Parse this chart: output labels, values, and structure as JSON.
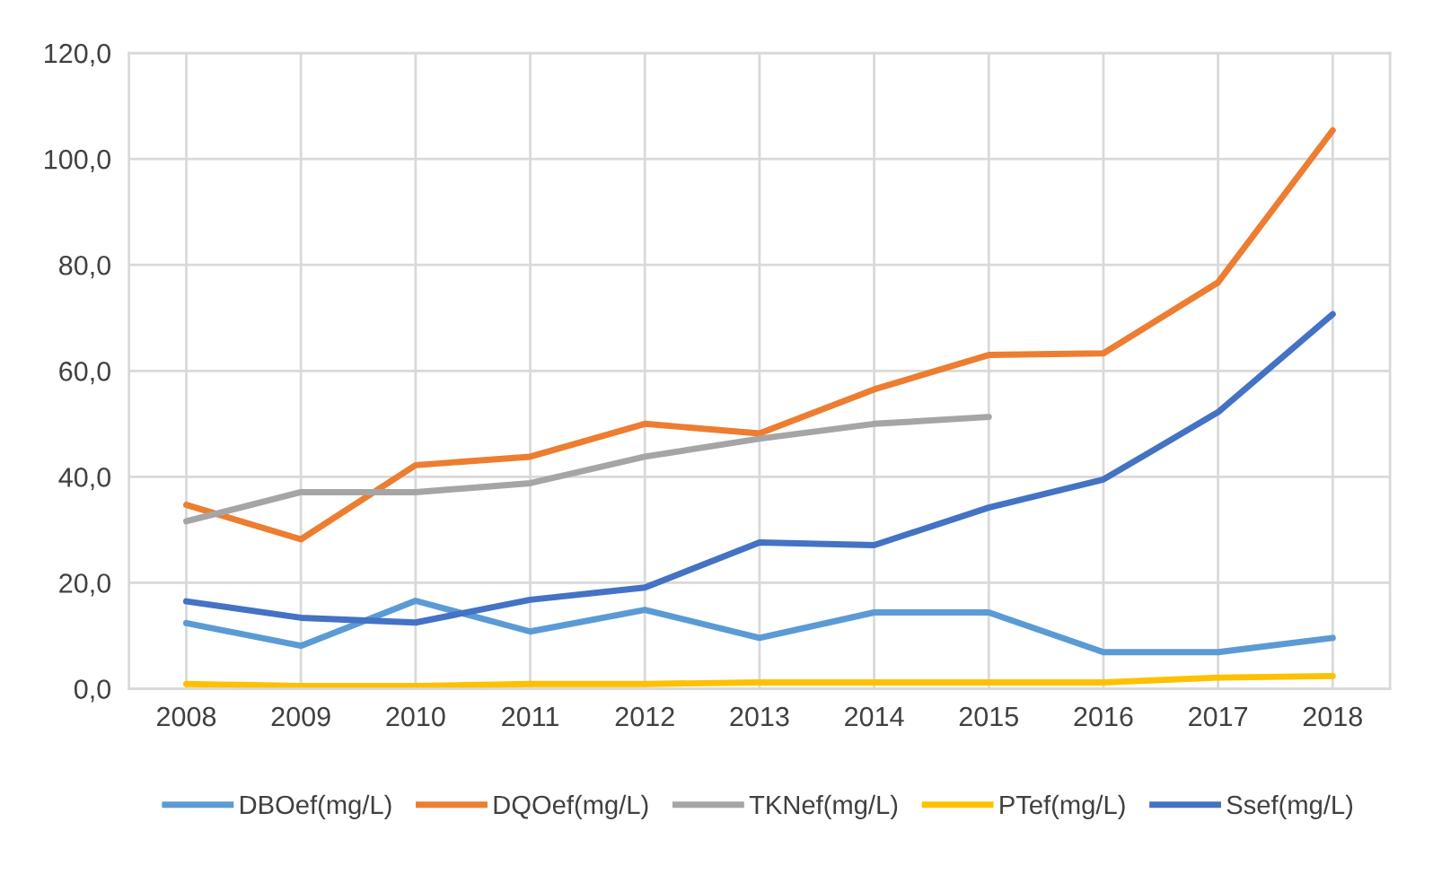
{
  "chart_data": {
    "type": "line",
    "categories": [
      "2008",
      "2009",
      "2010",
      "2011",
      "2012",
      "2013",
      "2014",
      "2015",
      "2016",
      "2017",
      "2018"
    ],
    "series": [
      {
        "name": "DBOef(mg/L)",
        "color": "#5b9bd5",
        "values": [
          12.4,
          8.1,
          16.6,
          10.8,
          14.9,
          9.6,
          14.4,
          14.4,
          6.9,
          6.9,
          9.6
        ]
      },
      {
        "name": "DQOef(mg/L)",
        "color": "#ed7d31",
        "values": [
          34.7,
          28.2,
          42.2,
          43.8,
          50.0,
          48.2,
          56.5,
          63.0,
          63.3,
          76.7,
          105.4
        ]
      },
      {
        "name": "TKNef(mg/L)",
        "color": "#a5a5a5",
        "values": [
          31.6,
          37.1,
          37.1,
          38.8,
          43.8,
          47.2,
          50.0,
          51.3,
          null,
          null,
          null
        ]
      },
      {
        "name": "PTef(mg/L)",
        "color": "#ffc000",
        "values": [
          0.9,
          0.5,
          0.5,
          0.9,
          0.9,
          1.2,
          1.2,
          1.2,
          1.2,
          2.1,
          2.4
        ]
      },
      {
        "name": "Ssef(mg/L)",
        "color": "#4472c4",
        "values": [
          16.5,
          13.4,
          12.5,
          16.8,
          19.1,
          27.6,
          27.1,
          34.2,
          39.5,
          52.2,
          70.7
        ]
      }
    ],
    "ylim": [
      0,
      120
    ],
    "yticks": [
      {
        "value": 0,
        "label": "0,0"
      },
      {
        "value": 20,
        "label": "20,0"
      },
      {
        "value": 40,
        "label": "40,0"
      },
      {
        "value": 60,
        "label": "60,0"
      },
      {
        "value": 80,
        "label": "80,0"
      },
      {
        "value": 100,
        "label": "100,0"
      },
      {
        "value": 120,
        "label": "120,0"
      }
    ],
    "grid": true,
    "legend": "bottom",
    "marker": "none",
    "line_style": "solid"
  }
}
